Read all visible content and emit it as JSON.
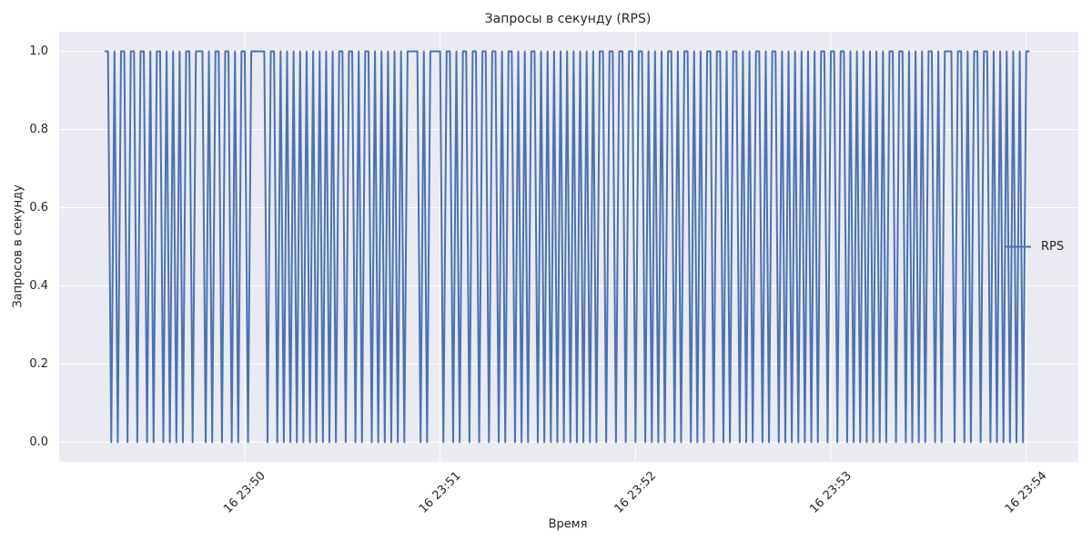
{
  "chart_data": {
    "type": "line",
    "title": "Запросы в секунду (RPS)",
    "xlabel": "Время",
    "ylabel": "Запросов в секунду",
    "x": [
      "16 23:49:17",
      "16 23:49:18",
      "16 23:49:19",
      "16 23:49:20",
      "16 23:49:21",
      "16 23:49:22",
      "16 23:49:23",
      "16 23:49:24",
      "16 23:49:25",
      "16 23:49:26",
      "16 23:49:27",
      "16 23:49:28",
      "16 23:49:29",
      "16 23:49:30",
      "16 23:49:31",
      "16 23:49:32",
      "16 23:49:33",
      "16 23:49:34",
      "16 23:49:35",
      "16 23:49:36",
      "16 23:49:37",
      "16 23:49:38",
      "16 23:49:39",
      "16 23:49:40",
      "16 23:49:41",
      "16 23:49:42",
      "16 23:49:43",
      "16 23:49:44",
      "16 23:49:45",
      "16 23:49:46",
      "16 23:49:47",
      "16 23:49:48",
      "16 23:49:49",
      "16 23:49:50",
      "16 23:49:51",
      "16 23:49:52",
      "16 23:49:53",
      "16 23:49:54",
      "16 23:49:55",
      "16 23:49:56",
      "16 23:49:57",
      "16 23:49:58",
      "16 23:49:59",
      "16 23:50:00",
      "16 23:50:01",
      "16 23:50:02",
      "16 23:50:03",
      "16 23:50:04",
      "16 23:50:05",
      "16 23:50:06",
      "16 23:50:07",
      "16 23:50:08",
      "16 23:50:09",
      "16 23:50:10",
      "16 23:50:11",
      "16 23:50:12",
      "16 23:50:13",
      "16 23:50:14",
      "16 23:50:15",
      "16 23:50:16",
      "16 23:50:17",
      "16 23:50:18",
      "16 23:50:19",
      "16 23:50:20",
      "16 23:50:21",
      "16 23:50:22",
      "16 23:50:23",
      "16 23:50:24",
      "16 23:50:25",
      "16 23:50:26",
      "16 23:50:27",
      "16 23:50:28",
      "16 23:50:29",
      "16 23:50:30",
      "16 23:50:31",
      "16 23:50:32",
      "16 23:50:33",
      "16 23:50:34",
      "16 23:50:35",
      "16 23:50:36",
      "16 23:50:37",
      "16 23:50:38",
      "16 23:50:39",
      "16 23:50:40",
      "16 23:50:41",
      "16 23:50:42",
      "16 23:50:43",
      "16 23:50:44",
      "16 23:50:45",
      "16 23:50:46",
      "16 23:50:47",
      "16 23:50:48",
      "16 23:50:49",
      "16 23:50:50",
      "16 23:50:51",
      "16 23:50:52",
      "16 23:50:53",
      "16 23:50:54",
      "16 23:50:55",
      "16 23:50:56",
      "16 23:50:57",
      "16 23:50:58",
      "16 23:50:59",
      "16 23:51:00",
      "16 23:51:01",
      "16 23:51:02",
      "16 23:51:03",
      "16 23:51:04",
      "16 23:51:05",
      "16 23:51:06",
      "16 23:51:07",
      "16 23:51:08",
      "16 23:51:09",
      "16 23:51:10",
      "16 23:51:11",
      "16 23:51:12",
      "16 23:51:13",
      "16 23:51:14",
      "16 23:51:15",
      "16 23:51:16",
      "16 23:51:17",
      "16 23:51:18",
      "16 23:51:19",
      "16 23:51:20",
      "16 23:51:21",
      "16 23:51:22",
      "16 23:51:23",
      "16 23:51:24",
      "16 23:51:25",
      "16 23:51:26",
      "16 23:51:27",
      "16 23:51:28",
      "16 23:51:29",
      "16 23:51:30",
      "16 23:51:31",
      "16 23:51:32",
      "16 23:51:33",
      "16 23:51:34",
      "16 23:51:35",
      "16 23:51:36",
      "16 23:51:37",
      "16 23:51:38",
      "16 23:51:39",
      "16 23:51:40",
      "16 23:51:41",
      "16 23:51:42",
      "16 23:51:43",
      "16 23:51:44",
      "16 23:51:45",
      "16 23:51:46",
      "16 23:51:47",
      "16 23:51:48",
      "16 23:51:49",
      "16 23:51:50",
      "16 23:51:51",
      "16 23:51:52",
      "16 23:51:53",
      "16 23:51:54",
      "16 23:51:55",
      "16 23:51:56",
      "16 23:51:57",
      "16 23:51:58",
      "16 23:51:59",
      "16 23:52:00",
      "16 23:52:01",
      "16 23:52:02",
      "16 23:52:03",
      "16 23:52:04",
      "16 23:52:05",
      "16 23:52:06",
      "16 23:52:07",
      "16 23:52:08",
      "16 23:52:09",
      "16 23:52:10",
      "16 23:52:11",
      "16 23:52:12",
      "16 23:52:13",
      "16 23:52:14",
      "16 23:52:15",
      "16 23:52:16",
      "16 23:52:17",
      "16 23:52:18",
      "16 23:52:19",
      "16 23:52:20",
      "16 23:52:21",
      "16 23:52:22",
      "16 23:52:23",
      "16 23:52:24",
      "16 23:52:25",
      "16 23:52:26",
      "16 23:52:27",
      "16 23:52:28",
      "16 23:52:29",
      "16 23:52:30",
      "16 23:52:31",
      "16 23:52:32",
      "16 23:52:33",
      "16 23:52:34",
      "16 23:52:35",
      "16 23:52:36",
      "16 23:52:37",
      "16 23:52:38",
      "16 23:52:39",
      "16 23:52:40",
      "16 23:52:41",
      "16 23:52:42",
      "16 23:52:43",
      "16 23:52:44",
      "16 23:52:45",
      "16 23:52:46",
      "16 23:52:47",
      "16 23:52:48",
      "16 23:52:49",
      "16 23:52:50",
      "16 23:52:51",
      "16 23:52:52",
      "16 23:52:53",
      "16 23:52:54",
      "16 23:52:55",
      "16 23:52:56",
      "16 23:52:57",
      "16 23:52:58",
      "16 23:52:59",
      "16 23:53:00",
      "16 23:53:01",
      "16 23:53:02",
      "16 23:53:03",
      "16 23:53:04",
      "16 23:53:05",
      "16 23:53:06",
      "16 23:53:07",
      "16 23:53:08",
      "16 23:53:09",
      "16 23:53:10",
      "16 23:53:11",
      "16 23:53:12",
      "16 23:53:13",
      "16 23:53:14",
      "16 23:53:15",
      "16 23:53:16",
      "16 23:53:17",
      "16 23:53:18",
      "16 23:53:19",
      "16 23:53:20",
      "16 23:53:21",
      "16 23:53:22",
      "16 23:53:23",
      "16 23:53:24",
      "16 23:53:25",
      "16 23:53:26",
      "16 23:53:27",
      "16 23:53:28",
      "16 23:53:29",
      "16 23:53:30",
      "16 23:53:31",
      "16 23:53:32",
      "16 23:53:33",
      "16 23:53:34",
      "16 23:53:35",
      "16 23:53:36",
      "16 23:53:37",
      "16 23:53:38",
      "16 23:53:39",
      "16 23:53:40",
      "16 23:53:41",
      "16 23:53:42",
      "16 23:53:43",
      "16 23:53:44",
      "16 23:53:45",
      "16 23:53:46",
      "16 23:53:47",
      "16 23:53:48",
      "16 23:53:49",
      "16 23:53:50",
      "16 23:53:51",
      "16 23:53:52",
      "16 23:53:53",
      "16 23:53:54",
      "16 23:53:55",
      "16 23:53:56",
      "16 23:53:57",
      "16 23:53:58",
      "16 23:53:59",
      "16 23:54:00",
      "16 23:54:01"
    ],
    "series": [
      {
        "name": "RPS",
        "color": "#4c72b0",
        "values": [
          1,
          1,
          0,
          1,
          0,
          1,
          1,
          0,
          1,
          1,
          0,
          1,
          1,
          0,
          1,
          0,
          1,
          1,
          0,
          1,
          0,
          1,
          0,
          1,
          0,
          1,
          1,
          0,
          1,
          1,
          1,
          0,
          1,
          0,
          1,
          1,
          0,
          1,
          1,
          0,
          1,
          0,
          1,
          1,
          0,
          1,
          1,
          1,
          1,
          1,
          0,
          1,
          1,
          0,
          1,
          0,
          1,
          0,
          1,
          0,
          1,
          0,
          1,
          0,
          1,
          0,
          1,
          0,
          1,
          0,
          1,
          0,
          1,
          1,
          0,
          1,
          1,
          0,
          1,
          0,
          1,
          1,
          0,
          1,
          0,
          1,
          0,
          1,
          0,
          1,
          0,
          1,
          0,
          1,
          1,
          1,
          1,
          0,
          1,
          0,
          1,
          1,
          1,
          1,
          0,
          1,
          1,
          0,
          1,
          0,
          1,
          1,
          0,
          1,
          1,
          0,
          1,
          1,
          0,
          1,
          1,
          0,
          1,
          0,
          1,
          1,
          0,
          1,
          0,
          1,
          0,
          1,
          1,
          0,
          1,
          0,
          1,
          0,
          1,
          0,
          1,
          0,
          1,
          0,
          1,
          0,
          1,
          0,
          1,
          0,
          1,
          0,
          1,
          1,
          0,
          1,
          1,
          0,
          1,
          1,
          0,
          1,
          1,
          0,
          1,
          1,
          0,
          1,
          0,
          1,
          0,
          1,
          0,
          1,
          1,
          0,
          1,
          0,
          1,
          1,
          0,
          1,
          0,
          1,
          0,
          1,
          1,
          0,
          1,
          1,
          0,
          1,
          0,
          1,
          1,
          0,
          1,
          0,
          1,
          0,
          1,
          1,
          0,
          1,
          0,
          1,
          1,
          0,
          1,
          0,
          1,
          0,
          1,
          0,
          1,
          0,
          1,
          0,
          1,
          0,
          1,
          1,
          0,
          1,
          1,
          0,
          1,
          1,
          0,
          1,
          0,
          1,
          0,
          1,
          0,
          1,
          0,
          1,
          0,
          1,
          0,
          1,
          1,
          0,
          1,
          1,
          0,
          1,
          0,
          1,
          0,
          1,
          0,
          1,
          1,
          0,
          1,
          0,
          1,
          1,
          1,
          0,
          1,
          1,
          0,
          1,
          0,
          1,
          1,
          0,
          1,
          1,
          0,
          1,
          0,
          1,
          0,
          1,
          0,
          1,
          0,
          1,
          0,
          1,
          1
        ]
      }
    ],
    "xlim": [
      "16 23:49:03",
      "16 23:54:16"
    ],
    "xticks": [
      {
        "value": "16 23:50:00",
        "label": "16 23:50"
      },
      {
        "value": "16 23:51:00",
        "label": "16 23:51"
      },
      {
        "value": "16 23:52:00",
        "label": "16 23:52"
      },
      {
        "value": "16 23:53:00",
        "label": "16 23:53"
      },
      {
        "value": "16 23:54:00",
        "label": "16 23:54"
      }
    ],
    "ylim": [
      -0.05,
      1.05
    ],
    "yticks": [
      {
        "value": 0,
        "label": "0.0"
      },
      0.2,
      0.4,
      0.6,
      0.8,
      {
        "value": 1,
        "label": "1.0"
      }
    ],
    "grid": true,
    "legend": "right"
  }
}
